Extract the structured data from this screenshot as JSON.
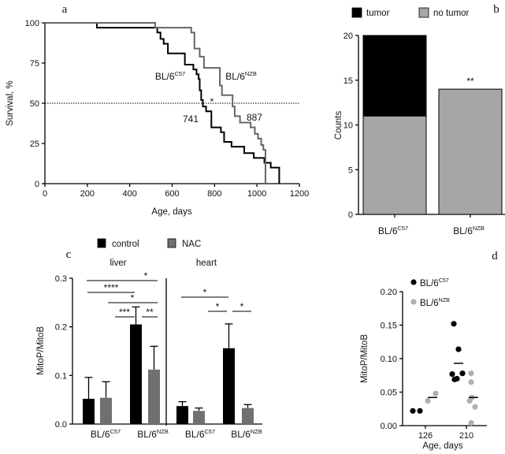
{
  "chart_data": [
    {
      "panel": "a",
      "type": "line",
      "step": true,
      "xlabel": "Age, days",
      "ylabel": "Survival, %",
      "xlim": [
        0,
        1200
      ],
      "ylim": [
        0,
        100
      ],
      "xticks": [
        "0",
        "200",
        "400",
        "600",
        "800",
        "1000",
        "1200"
      ],
      "yticks": [
        "0",
        "25",
        "50",
        "75",
        "100"
      ],
      "reference_line": {
        "y": 50,
        "style": "dotted"
      },
      "series": [
        {
          "name": {
            "base": "BL/6",
            "sup": "C57"
          },
          "color": "#000000",
          "x": [
            0,
            245,
            530,
            545,
            560,
            580,
            600,
            660,
            700,
            715,
            725,
            730,
            737,
            745,
            760,
            785,
            830,
            845,
            880,
            940,
            985,
            1035,
            1065,
            1105
          ],
          "y": [
            100,
            97,
            94,
            90,
            87,
            81,
            81,
            74,
            71,
            68,
            65,
            58,
            52,
            48,
            45,
            35,
            32,
            26,
            23,
            19,
            16,
            13,
            10,
            0
          ],
          "median_label": "741"
        },
        {
          "name": {
            "base": "BL/6",
            "sup": "NZB"
          },
          "color": "#666666",
          "x": [
            0,
            520,
            690,
            705,
            730,
            750,
            825,
            835,
            885,
            895,
            920,
            970,
            990,
            1005,
            1020,
            1030,
            1040
          ],
          "y": [
            100,
            97,
            94,
            84,
            79,
            72,
            61,
            55,
            48,
            42,
            38,
            35,
            31,
            28,
            24,
            21,
            0
          ],
          "median_label": "887"
        }
      ],
      "annotations": [
        "*"
      ]
    },
    {
      "panel": "b",
      "type": "bar",
      "stacked": true,
      "ylabel": "Counts",
      "ylim": [
        0,
        20
      ],
      "yticks": [
        "0",
        "5",
        "10",
        "15",
        "20"
      ],
      "categories": [
        {
          "base": "BL/6",
          "sup": "C57"
        },
        {
          "base": "BL/6",
          "sup": "NZB"
        }
      ],
      "series": [
        {
          "name": "no tumor",
          "color": "#a6a6a6",
          "values": [
            11,
            14
          ]
        },
        {
          "name": "tumor",
          "color": "#000000",
          "values": [
            9,
            0
          ]
        }
      ],
      "annotations": [
        {
          "category": 1,
          "text": "**"
        }
      ],
      "legend": "top"
    },
    {
      "panel": "c",
      "type": "bar",
      "ylabel": "MitoP/MitoB",
      "ylim": [
        0,
        0.3
      ],
      "yticks": [
        "0.0",
        "0.1",
        "0.2",
        "0.3"
      ],
      "groups": [
        "liver",
        "heart"
      ],
      "categories": [
        {
          "base": "BL/6",
          "sup": "C57"
        },
        {
          "base": "BL/6",
          "sup": "NZB"
        }
      ],
      "series": [
        {
          "name": "control",
          "color": "#000000",
          "values": {
            "liver": [
              0.052,
              0.205
            ],
            "heart": [
              0.037,
              0.156
            ]
          },
          "errors": {
            "liver": [
              0.044,
              0.036
            ],
            "heart": [
              0.009,
              0.05
            ]
          }
        },
        {
          "name": "NAC",
          "color": "#707070",
          "values": {
            "liver": [
              0.054,
              0.112
            ],
            "heart": [
              0.027,
              0.033
            ]
          },
          "errors": {
            "liver": [
              0.033,
              0.048
            ],
            "heart": [
              0.006,
              0.007
            ]
          }
        }
      ],
      "significance": [
        {
          "group": "liver",
          "label": "*"
        },
        {
          "group": "liver",
          "label": "****"
        },
        {
          "group": "liver",
          "label": "*"
        },
        {
          "group": "liver",
          "label": "***"
        },
        {
          "group": "liver",
          "label": "**"
        },
        {
          "group": "heart",
          "label": "*"
        },
        {
          "group": "heart",
          "label": "*"
        },
        {
          "group": "heart",
          "label": "*"
        }
      ],
      "legend": "top"
    },
    {
      "panel": "d",
      "type": "scatter",
      "xlabel": "Age, days",
      "ylabel": "MitoP/MitoB",
      "ylim": [
        0,
        0.2
      ],
      "yticks": [
        "0.00",
        "0.05",
        "0.10",
        "0.15",
        "0.20"
      ],
      "categories": [
        "126",
        "210"
      ],
      "series": [
        {
          "name": {
            "base": "BL/6",
            "sup": "C57"
          },
          "color": "#000000",
          "points": {
            "126": [
              0.022,
              0.022
            ],
            "210": [
              0.152,
              0.114,
              0.077,
              0.069,
              0.07,
              0.078
            ]
          },
          "means": {
            "126": 0.022,
            "210": 0.093
          }
        },
        {
          "name": {
            "base": "BL/6",
            "sup": "NZB"
          },
          "color": "#b0b0b0",
          "points": {
            "126": [
              0.037,
              0.048
            ],
            "210": [
              0.078,
              0.065,
              0.042,
              0.037,
              0.028,
              0.004
            ]
          },
          "means": {
            "126": 0.042,
            "210": 0.042
          }
        }
      ],
      "legend": "top-left"
    }
  ]
}
